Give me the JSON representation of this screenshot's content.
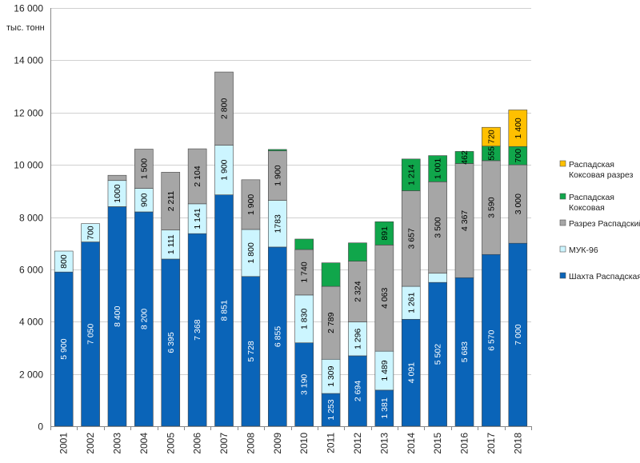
{
  "chart_data": {
    "type": "bar",
    "stacked": true,
    "ylabel": "тыс. тонн",
    "ylim": [
      0,
      16000
    ],
    "yticks": [
      0,
      2000,
      4000,
      6000,
      8000,
      10000,
      12000,
      14000,
      16000
    ],
    "ytick_labels": [
      "0",
      "2 000",
      "4 000",
      "6 000",
      "8 000",
      "10 000",
      "12 000",
      "14 000",
      "16 000"
    ],
    "grid": true,
    "legend": "right",
    "categories": [
      "2001",
      "2002",
      "2003",
      "2004",
      "2005",
      "2006",
      "2007",
      "2008",
      "2009",
      "2010",
      "2011",
      "2012",
      "2013",
      "2014",
      "2015",
      "2016",
      "2017",
      "2018"
    ],
    "series": [
      {
        "name": "Шахта Распадская",
        "color": "#0a64b8",
        "label_color": "#ffffff",
        "values": [
          5900,
          7050,
          8400,
          8200,
          6395,
          7368,
          8851,
          5728,
          6855,
          3190,
          1253,
          2694,
          1381,
          4091,
          5502,
          5683,
          6570,
          7000
        ],
        "labels": [
          "5 900",
          "7 050",
          "8 400",
          "8 200",
          "6 395",
          "7 368",
          "8 851",
          "5 728",
          "6 855",
          "3 190",
          "1 253",
          "2 694",
          "1 381",
          "4 091",
          "5 502",
          "5 683",
          "6 570",
          "7 000"
        ]
      },
      {
        "name": "МУК-96",
        "color": "#ccf5ff",
        "label_color": "#000000",
        "values": [
          800,
          700,
          1000,
          900,
          1111,
          1141,
          1900,
          1800,
          1783,
          1830,
          1309,
          1296,
          1489,
          1261,
          350,
          0,
          0,
          0
        ],
        "labels": [
          "800",
          "700",
          "1000",
          "900",
          "1 111",
          "1 141",
          "1 900",
          "1 800",
          "1783",
          "1 830",
          "1 309",
          "1 296",
          "1 489",
          "1 261",
          "",
          "",
          "",
          ""
        ]
      },
      {
        "name": "Разрез Распадский",
        "color": "#a6a6a6",
        "label_color": "#000000",
        "values": [
          0,
          0,
          200,
          1500,
          2211,
          2104,
          2800,
          1900,
          1900,
          1740,
          2789,
          2324,
          4063,
          3657,
          3500,
          4367,
          3590,
          3000
        ],
        "labels": [
          "",
          "",
          "",
          "1 500",
          "2 211",
          "2 104",
          "2 800",
          "1 900",
          "1 900",
          "1 740",
          "2 789",
          "2 324",
          "4 063",
          "3 657",
          "3 500",
          "4 367",
          "3 590",
          "3 000"
        ]
      },
      {
        "name": "Распадская Коксовая",
        "color": "#10a64b",
        "label_color": "#000000",
        "values": [
          0,
          0,
          0,
          0,
          0,
          0,
          0,
          0,
          50,
          400,
          900,
          700,
          891,
          1214,
          1001,
          462,
          555,
          700
        ],
        "labels": [
          "",
          "",
          "",
          "",
          "",
          "",
          "",
          "",
          "",
          "",
          "",
          "",
          "891",
          "1 214",
          "1 001",
          "462",
          "555",
          "700"
        ]
      },
      {
        "name": "Распадская Коксовая разрез",
        "color": "#ffc000",
        "label_color": "#000000",
        "values": [
          0,
          0,
          0,
          0,
          0,
          0,
          0,
          0,
          0,
          0,
          0,
          0,
          0,
          0,
          0,
          0,
          720,
          1400
        ],
        "labels": [
          "",
          "",
          "",
          "",
          "",
          "",
          "",
          "",
          "",
          "",
          "",
          "",
          "",
          "",
          "",
          "",
          "720",
          "1 400"
        ]
      }
    ],
    "legend_items": [
      {
        "lines": [
          "Распадская",
          "Коксовая разрез"
        ],
        "color": "#ffc000"
      },
      {
        "lines": [
          "Распадская",
          "Коксовая"
        ],
        "color": "#10a64b"
      },
      {
        "lines": [
          "Разрез Распадский"
        ],
        "color": "#a6a6a6"
      },
      {
        "lines": [
          "МУК-96"
        ],
        "color": "#ccf5ff"
      },
      {
        "lines": [
          "Шахта Распадская"
        ],
        "color": "#0a64b8"
      }
    ]
  }
}
